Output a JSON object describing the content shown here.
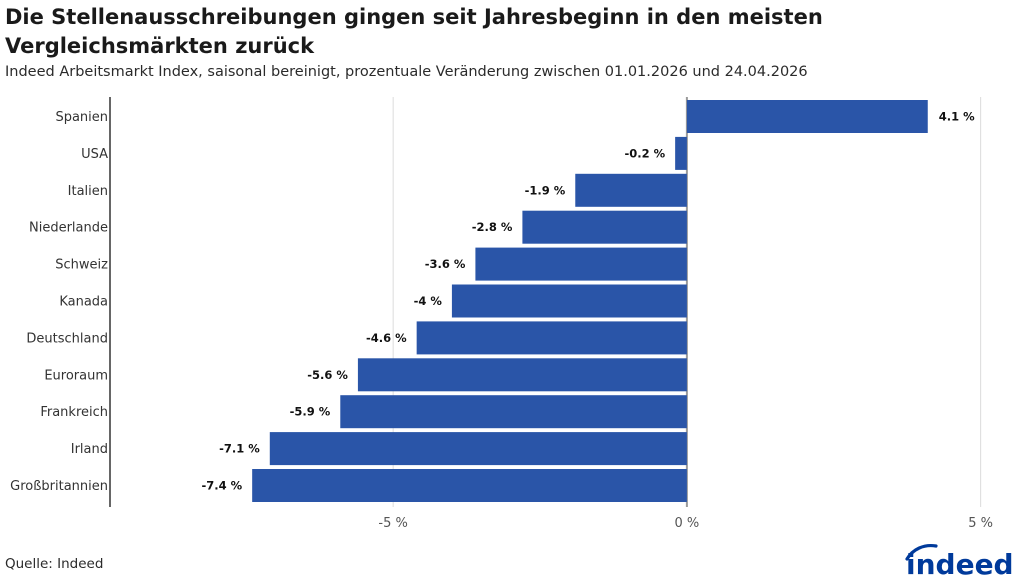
{
  "title": "Die Stellenausschreibungen gingen seit Jahresbeginn in den meisten Vergleichsmärkten zurück",
  "subtitle": "Indeed Arbeitsmarkt Index, saisonal bereinigt, prozentuale Veränderung zwischen 01.01.2026 und 24.04.2026",
  "source": "Quelle: Indeed",
  "logo_text": "indeed",
  "colors": {
    "bar": "#2a55a8",
    "grid": "#dcdcdc",
    "zero_line": "#9a9a9a",
    "axis": "#333333",
    "logo": "#003a9b"
  },
  "chart_data": {
    "type": "bar",
    "orientation": "horizontal",
    "categories": [
      "Spanien",
      "USA",
      "Italien",
      "Niederlande",
      "Schweiz",
      "Kanada",
      "Deutschland",
      "Euroraum",
      "Frankreich",
      "Irland",
      "Großbritannien"
    ],
    "values": [
      4.1,
      -0.2,
      -1.9,
      -2.8,
      -3.6,
      -4,
      -4.6,
      -5.6,
      -5.9,
      -7.1,
      -7.4
    ],
    "value_labels": [
      "4.1 %",
      "-0.2 %",
      "-1.9 %",
      "-2.8 %",
      "-3.6 %",
      "-4 %",
      "-4.6 %",
      "-5.6 %",
      "-5.9 %",
      "-7.1 %",
      "-7.4 %"
    ],
    "xticks": [
      -5,
      0,
      5
    ],
    "xtick_labels": [
      "-5 %",
      "0 %",
      "5 %"
    ],
    "xlim": [
      -9.82,
      5.5
    ],
    "grid": true
  }
}
